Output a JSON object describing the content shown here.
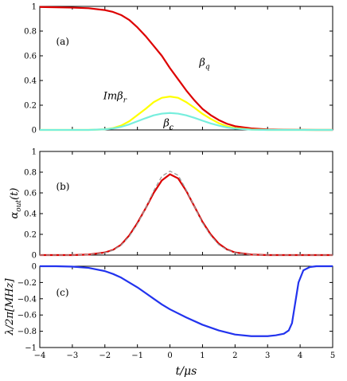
{
  "chart_data": [
    {
      "panel_label": "(a)",
      "type": "line",
      "ylabel": "",
      "xlim": [
        -4,
        5
      ],
      "ylim": [
        0,
        1
      ],
      "x_ticks": [
        -4,
        -3,
        -2,
        -1,
        0,
        1,
        2,
        3,
        4,
        5
      ],
      "y_ticks": [
        0,
        0.2,
        0.4,
        0.6,
        0.8,
        1
      ],
      "y_tick_labels": [
        "0",
        "0.2",
        "0.4",
        "0.6",
        "0.8",
        "1"
      ],
      "x": [
        -4,
        -3.5,
        -3,
        -2.5,
        -2,
        -1.75,
        -1.5,
        -1.25,
        -1,
        -0.75,
        -0.5,
        -0.25,
        0,
        0.25,
        0.5,
        0.75,
        1,
        1.25,
        1.5,
        1.75,
        2,
        2.5,
        3,
        3.5,
        4,
        4.5,
        5
      ],
      "series": [
        {
          "name": "β_q",
          "color": "#dd0000",
          "values": [
            0.995,
            0.993,
            0.99,
            0.985,
            0.97,
            0.955,
            0.93,
            0.89,
            0.83,
            0.76,
            0.68,
            0.6,
            0.5,
            0.41,
            0.32,
            0.24,
            0.17,
            0.12,
            0.08,
            0.05,
            0.03,
            0.012,
            0.004,
            0.002,
            0.001,
            0.0,
            0.0
          ]
        },
        {
          "name": "Imβ_r",
          "color": "#ffff00",
          "values": [
            0,
            0,
            0,
            0,
            0.005,
            0.015,
            0.035,
            0.07,
            0.12,
            0.17,
            0.225,
            0.26,
            0.27,
            0.26,
            0.225,
            0.18,
            0.13,
            0.09,
            0.055,
            0.03,
            0.015,
            0.003,
            0,
            0,
            0,
            0,
            0
          ]
        },
        {
          "name": "β_c",
          "color": "#77eedd",
          "values": [
            0,
            0,
            0,
            0,
            0.005,
            0.012,
            0.025,
            0.045,
            0.07,
            0.095,
            0.118,
            0.132,
            0.137,
            0.132,
            0.118,
            0.098,
            0.075,
            0.053,
            0.035,
            0.02,
            0.011,
            0.002,
            0,
            0,
            0,
            0,
            0
          ]
        }
      ],
      "annotations": [
        {
          "text": "β",
          "sub": "q",
          "x": 0.9,
          "y": 0.52,
          "italic": true
        },
        {
          "text": "Imβ",
          "sub": "r",
          "x": -2.05,
          "y": 0.25,
          "italic": true
        },
        {
          "text": "β",
          "sub": "c",
          "x": -0.2,
          "y": 0.03,
          "italic": true
        }
      ]
    },
    {
      "panel_label": "(b)",
      "type": "line",
      "ylabel": "α_out(t)",
      "ylabel_main": "α",
      "ylabel_sub": "out",
      "ylabel_tail": "(t)",
      "xlim": [
        -4,
        5
      ],
      "ylim": [
        0,
        1
      ],
      "x_ticks": [
        -4,
        -3,
        -2,
        -1,
        0,
        1,
        2,
        3,
        4,
        5
      ],
      "y_ticks": [
        0,
        0.2,
        0.4,
        0.6,
        0.8,
        1
      ],
      "y_tick_labels": [
        "0",
        "0.2",
        "0.4",
        "0.6",
        "0.8",
        "1"
      ],
      "x": [
        -4,
        -3.5,
        -3,
        -2.5,
        -2,
        -1.75,
        -1.5,
        -1.25,
        -1,
        -0.75,
        -0.5,
        -0.25,
        0,
        0.25,
        0.5,
        0.75,
        1,
        1.25,
        1.5,
        1.75,
        2,
        2.5,
        3,
        3.5,
        4,
        4.5,
        5
      ],
      "series": [
        {
          "name": "",
          "color": "#dd0000",
          "dashed": false,
          "values": [
            0,
            0,
            0,
            0.005,
            0.025,
            0.05,
            0.1,
            0.19,
            0.31,
            0.45,
            0.6,
            0.72,
            0.78,
            0.74,
            0.62,
            0.47,
            0.32,
            0.2,
            0.11,
            0.055,
            0.025,
            0.005,
            0,
            0,
            0,
            0,
            0
          ]
        },
        {
          "name": "",
          "color": "#999999",
          "dashed": true,
          "values": [
            0,
            0,
            0,
            0.004,
            0.022,
            0.046,
            0.095,
            0.18,
            0.3,
            0.45,
            0.62,
            0.76,
            0.81,
            0.77,
            0.63,
            0.47,
            0.31,
            0.19,
            0.1,
            0.05,
            0.022,
            0.004,
            0,
            0,
            0,
            0,
            0
          ]
        }
      ]
    },
    {
      "panel_label": "(c)",
      "type": "line",
      "ylabel": "λ/2π[MHz]",
      "xlabel": "t/μs",
      "xlim": [
        -4,
        5
      ],
      "ylim": [
        -1,
        0
      ],
      "x_ticks": [
        -4,
        -3,
        -2,
        -1,
        0,
        1,
        2,
        3,
        4,
        5
      ],
      "x_tick_labels": [
        "−4",
        "−3",
        "−2",
        "−1",
        "0",
        "1",
        "2",
        "3",
        "4",
        "5"
      ],
      "y_ticks": [
        -1,
        -0.8,
        -0.6,
        -0.4,
        -0.2,
        0
      ],
      "y_tick_labels": [
        "−1",
        "−0.8",
        "−0.6",
        "−0.4",
        "−0.2",
        "0"
      ],
      "x": [
        -4,
        -3.5,
        -3,
        -2.5,
        -2,
        -1.75,
        -1.5,
        -1.25,
        -1,
        -0.75,
        -0.5,
        -0.25,
        0,
        0.5,
        1,
        1.5,
        2,
        2.5,
        3,
        3.25,
        3.5,
        3.65,
        3.75,
        3.85,
        3.95,
        4.1,
        4.3,
        4.5,
        5
      ],
      "series": [
        {
          "name": "",
          "color": "#2233ee",
          "values": [
            0,
            0,
            -0.005,
            -0.02,
            -0.06,
            -0.095,
            -0.14,
            -0.2,
            -0.26,
            -0.33,
            -0.4,
            -0.47,
            -0.53,
            -0.63,
            -0.72,
            -0.79,
            -0.84,
            -0.86,
            -0.86,
            -0.85,
            -0.83,
            -0.79,
            -0.7,
            -0.45,
            -0.2,
            -0.05,
            -0.01,
            0,
            0
          ]
        }
      ]
    }
  ]
}
